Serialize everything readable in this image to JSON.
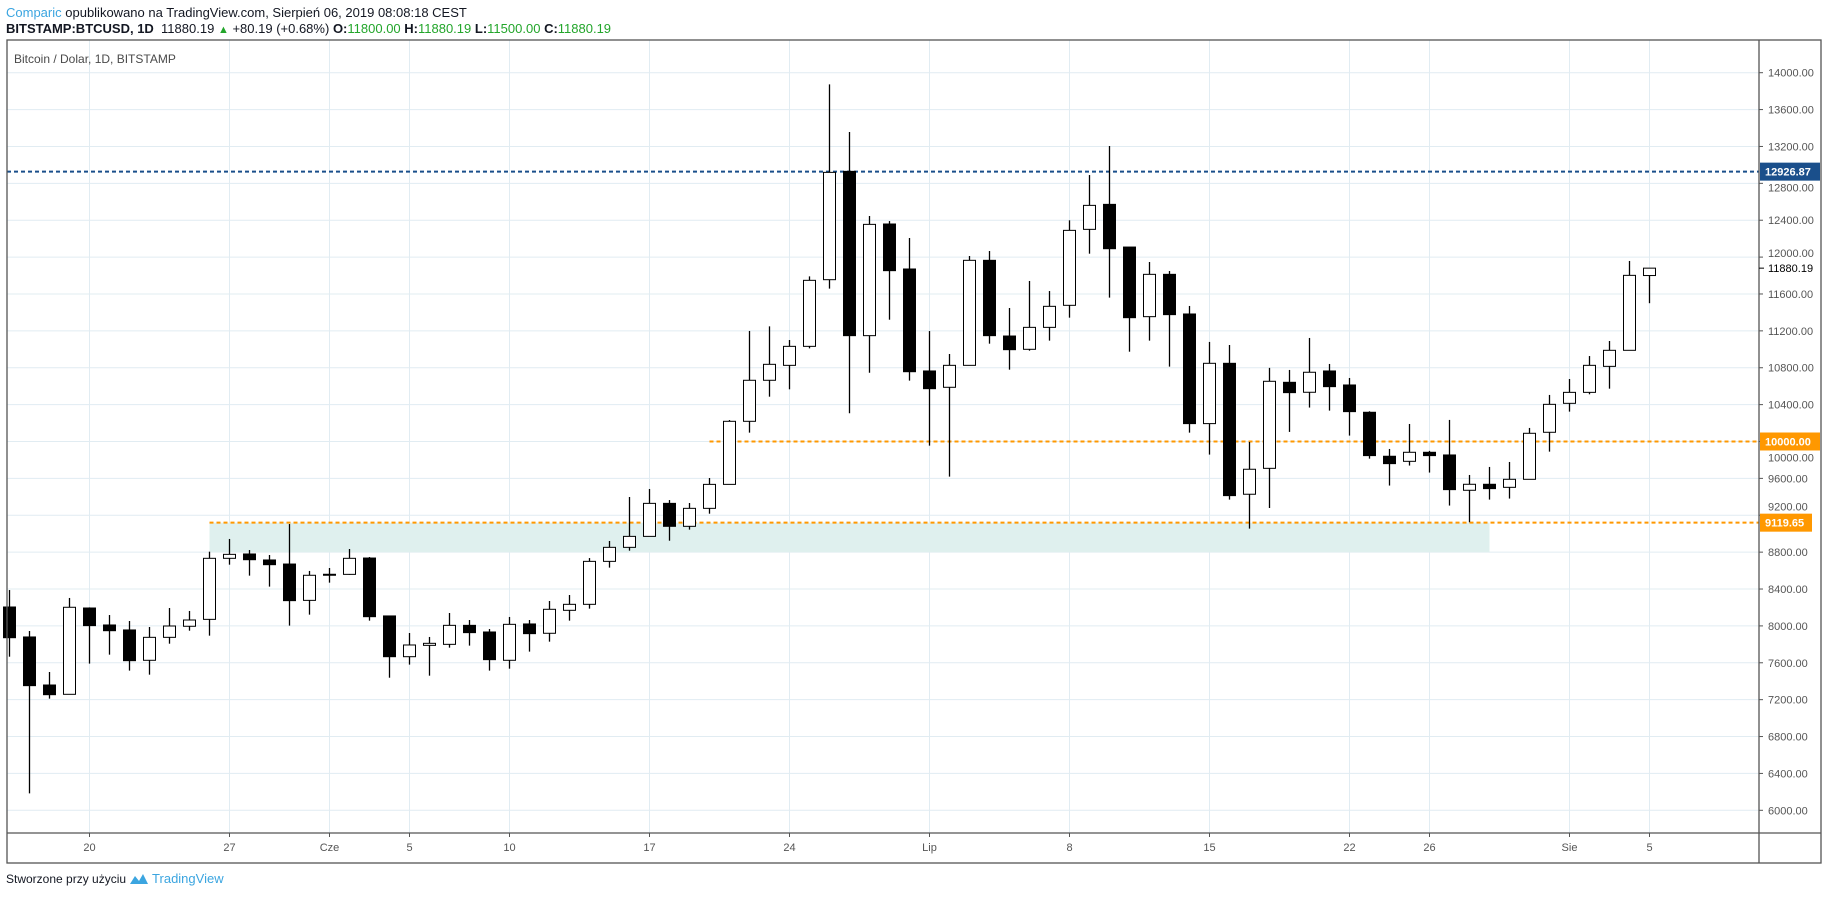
{
  "header": {
    "author": "Comparic",
    "published": "opublikowano na TradingView.com, Sierpień 06, 2019 08:08:18 CEST",
    "symbol": "BITSTAMP:BTCUSD, 1D",
    "last": "11880.19",
    "change": "+80.19 (+0.68%)",
    "o_label": "O:",
    "o": "11800.00",
    "h_label": "H:",
    "h": "11880.19",
    "l_label": "L:",
    "l": "11500.00",
    "c_label": "C:",
    "c": "11880.19"
  },
  "footer": {
    "text": "Stworzone przy użyciu",
    "brand": "TradingView"
  },
  "colors": {
    "up_fill": "#ffffff",
    "down_fill": "#000000",
    "grid": "#e1ecf2",
    "blue_level": "#1a4f8b",
    "orange_level": "#ff9800",
    "zone": "#dff0ee",
    "brand": "#3ba5e0",
    "green": "#22a52a"
  },
  "chart_data": {
    "type": "candlestick",
    "title": "Bitcoin / Dolar, 1D, BITSTAMP",
    "start_date": "2019-05-16",
    "ohlc_fields": [
      "open",
      "high",
      "low",
      "close"
    ],
    "ohlc": [
      [
        8205,
        8389,
        7666,
        7872
      ],
      [
        7880,
        7945,
        6184,
        7352
      ],
      [
        7359,
        7500,
        7211,
        7254
      ],
      [
        7258,
        8303,
        7258,
        8202
      ],
      [
        8194,
        8201,
        7591,
        8003
      ],
      [
        8010,
        8118,
        7688,
        7948
      ],
      [
        7956,
        8053,
        7515,
        7623
      ],
      [
        7627,
        7988,
        7471,
        7876
      ],
      [
        7876,
        8194,
        7807,
        7999
      ],
      [
        7996,
        8162,
        7948,
        8064
      ],
      [
        8071,
        8805,
        7894,
        8733
      ],
      [
        8733,
        8943,
        8664,
        8776
      ],
      [
        8780,
        8823,
        8545,
        8718
      ],
      [
        8715,
        8769,
        8426,
        8664
      ],
      [
        8671,
        9105,
        8003,
        8274
      ],
      [
        8277,
        8596,
        8122,
        8549
      ],
      [
        8550,
        8628,
        8469,
        8560
      ],
      [
        8559,
        8834,
        8555,
        8733
      ],
      [
        8736,
        8747,
        8057,
        8100
      ],
      [
        8108,
        8108,
        7438,
        7666
      ],
      [
        7666,
        7923,
        7580,
        7793
      ],
      [
        7789,
        7880,
        7460,
        7811
      ],
      [
        7800,
        8140,
        7764,
        8006
      ],
      [
        8006,
        8064,
        7786,
        7927
      ],
      [
        7934,
        7966,
        7515,
        7634
      ],
      [
        7627,
        8097,
        7536,
        8017
      ],
      [
        8021,
        8064,
        7721,
        7916
      ],
      [
        7920,
        8270,
        7829,
        8180
      ],
      [
        8169,
        8335,
        8057,
        8234
      ],
      [
        8234,
        8736,
        8187,
        8700
      ],
      [
        8700,
        8921,
        8632,
        8852
      ],
      [
        8852,
        9398,
        8816,
        8971
      ],
      [
        8971,
        9485,
        8971,
        9329
      ],
      [
        9329,
        9365,
        8924,
        9080
      ],
      [
        9080,
        9333,
        9044,
        9275
      ],
      [
        9275,
        9604,
        9217,
        9535
      ],
      [
        9535,
        10233,
        9535,
        10219
      ],
      [
        10219,
        11199,
        10096,
        10664
      ],
      [
        10664,
        11249,
        10486,
        10837
      ],
      [
        10826,
        11101,
        10566,
        11032
      ],
      [
        11032,
        11791,
        11010,
        11748
      ],
      [
        11755,
        13874,
        11658,
        12919
      ],
      [
        12930,
        13357,
        10306,
        11148
      ],
      [
        11148,
        12446,
        10746,
        12355
      ],
      [
        12359,
        12391,
        11321,
        11853
      ],
      [
        11871,
        12207,
        10660,
        10757
      ],
      [
        10765,
        11198,
        9955,
        10573
      ],
      [
        10588,
        10949,
        9619,
        10826
      ],
      [
        10826,
        12012,
        10826,
        11965
      ],
      [
        11965,
        12066,
        11061,
        11148
      ],
      [
        11144,
        11448,
        10779,
        10996
      ],
      [
        11000,
        11741,
        10985,
        11238
      ],
      [
        11238,
        11632,
        11094,
        11466
      ],
      [
        11477,
        12399,
        11343,
        12290
      ],
      [
        12301,
        12890,
        12037,
        12561
      ],
      [
        12572,
        13205,
        11560,
        12091
      ],
      [
        12109,
        12109,
        10974,
        11343
      ],
      [
        11354,
        11947,
        11094,
        11813
      ],
      [
        11813,
        11849,
        10812,
        11376
      ],
      [
        11383,
        11470,
        10096,
        10194
      ],
      [
        10194,
        11080,
        9858,
        10848
      ],
      [
        10848,
        11047,
        9370,
        9413
      ],
      [
        9428,
        9995,
        9055,
        9699
      ],
      [
        9709,
        10798,
        9279,
        10653
      ],
      [
        10642,
        10776,
        10104,
        10530
      ],
      [
        10534,
        11123,
        10368,
        10751
      ],
      [
        10765,
        10841,
        10335,
        10595
      ],
      [
        10613,
        10689,
        10064,
        10324
      ],
      [
        10317,
        10328,
        9814,
        9847
      ],
      [
        9840,
        9919,
        9522,
        9760
      ],
      [
        9785,
        10190,
        9739,
        9883
      ],
      [
        9883,
        9898,
        9663,
        9847
      ],
      [
        9854,
        10234,
        9305,
        9478
      ],
      [
        9471,
        9637,
        9124,
        9536
      ],
      [
        9536,
        9724,
        9370,
        9489
      ],
      [
        9503,
        9778,
        9381,
        9590
      ],
      [
        9590,
        10147,
        9590,
        10089
      ],
      [
        10100,
        10505,
        9890,
        10403
      ],
      [
        10414,
        10678,
        10324,
        10533
      ],
      [
        10533,
        10927,
        10512,
        10826
      ],
      [
        10815,
        11090,
        10573,
        10989
      ],
      [
        10989,
        11958,
        10989,
        11802
      ],
      [
        11800,
        11880,
        11500,
        11880.19
      ]
    ],
    "ylim": [
      5800,
      14300
    ],
    "y_ticks": [
      "6000.00",
      "6400.00",
      "6800.00",
      "7200.00",
      "7600.00",
      "8000.00",
      "8400.00",
      "8800.00",
      "9200.00",
      "9600.00",
      "10000.00",
      "10400.00",
      "10800.00",
      "11200.00",
      "11600.00",
      "12000.00",
      "12400.00",
      "12800.00",
      "13200.00",
      "13600.00",
      "14000.00"
    ],
    "x_ticks": [
      {
        "label": "20",
        "day_index": 4
      },
      {
        "label": "27",
        "day_index": 11
      },
      {
        "label": "Cze",
        "day_index": 16
      },
      {
        "label": "5",
        "day_index": 20
      },
      {
        "label": "10",
        "day_index": 25
      },
      {
        "label": "17",
        "day_index": 32
      },
      {
        "label": "24",
        "day_index": 39
      },
      {
        "label": "Lip",
        "day_index": 46
      },
      {
        "label": "8",
        "day_index": 53
      },
      {
        "label": "15",
        "day_index": 60
      },
      {
        "label": "22",
        "day_index": 67
      },
      {
        "label": "26",
        "day_index": 71
      },
      {
        "label": "Sie",
        "day_index": 78
      },
      {
        "label": "5",
        "day_index": 82
      }
    ],
    "levels": [
      {
        "value": 12926.87,
        "label": "12926.87",
        "color": "#1a4f8b",
        "from_day_index": -5
      },
      {
        "value": 10000,
        "label": "10000.00",
        "color": "#ff9800",
        "from_day_index": 35
      },
      {
        "value": 9119.65,
        "label": "9119.65",
        "color": "#ff9800",
        "from_day_index": 10
      }
    ],
    "zone": {
      "top": 9119.65,
      "bottom": 8800,
      "from_day_index": 10,
      "to_day_index": 74
    },
    "last_price_label": "11880.19",
    "grid": true
  }
}
